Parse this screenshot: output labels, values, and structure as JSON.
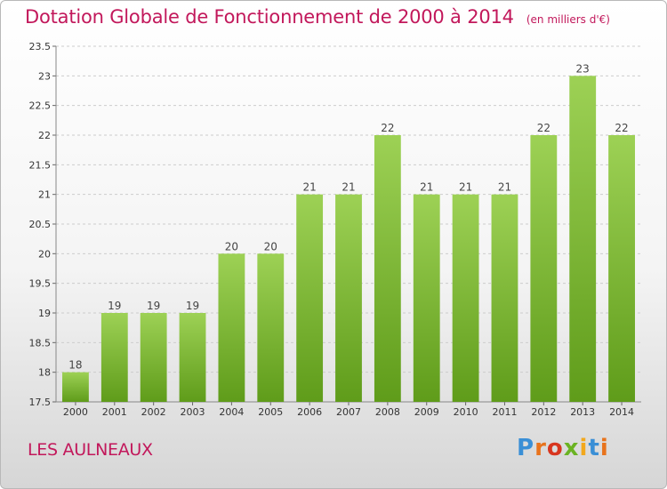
{
  "title": "Dotation Globale de Fonctionnement de 2000 à 2014",
  "unit_note": "(en milliers d'€)",
  "commune": "LES AULNEAUX",
  "logo": {
    "text": "Proxiti",
    "letter_colors": [
      "#3a8fd6",
      "#e8731c",
      "#d8361f",
      "#6bb323",
      "#f2a81d",
      "#3a8fd6",
      "#e8731c"
    ]
  },
  "colors": {
    "title": "#c2185b",
    "bar_light": "#9dd155",
    "bar_dark": "#5f9c1a",
    "grid": "#cccccc"
  },
  "chart_data": {
    "type": "bar",
    "categories": [
      "2000",
      "2001",
      "2002",
      "2003",
      "2004",
      "2005",
      "2006",
      "2007",
      "2008",
      "2009",
      "2010",
      "2011",
      "2012",
      "2013",
      "2014"
    ],
    "values": [
      18,
      19,
      19,
      19,
      20,
      20,
      21,
      21,
      22,
      21,
      21,
      21,
      22,
      23,
      22
    ],
    "value_labels": [
      "18",
      "19",
      "19",
      "19",
      "20",
      "20",
      "21",
      "21",
      "22",
      "21",
      "21",
      "21",
      "22",
      "23",
      "22"
    ],
    "ylim": [
      17.5,
      23.5
    ],
    "yticks": [
      17.5,
      18,
      18.5,
      19,
      19.5,
      20,
      20.5,
      21,
      21.5,
      22,
      22.5,
      23,
      23.5
    ],
    "ytick_labels": [
      "17.5",
      "18",
      "18.5",
      "19",
      "19.5",
      "20",
      "20.5",
      "21",
      "21.5",
      "22",
      "22.5",
      "23",
      "23.5"
    ],
    "grid": true,
    "xlabel": "",
    "ylabel": ""
  }
}
